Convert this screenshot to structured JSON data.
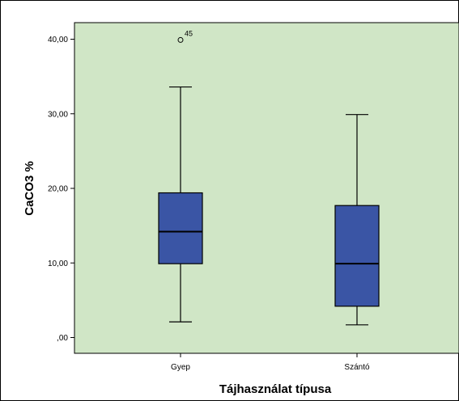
{
  "chart_data": {
    "type": "boxplot",
    "title": "",
    "xlabel": "Tájhasználat típusa",
    "ylabel": "CaCO3 %",
    "ylim": [
      -2,
      43
    ],
    "yticks": [
      0,
      10,
      20,
      30,
      40
    ],
    "ytick_labels": [
      ",00",
      "10,00",
      "20,00",
      "30,00",
      "40,00"
    ],
    "grid": false,
    "colors": {
      "plot_background": "#d0e6c6",
      "box_fill": "#3a55a5",
      "stroke": "#000000"
    },
    "categories": [
      "Gyep",
      "Szántó"
    ],
    "boxes": [
      {
        "category": "Gyep",
        "whisker_low": 2.1,
        "q1": 9.9,
        "median": 14.2,
        "q3": 19.4,
        "whisker_high": 33.6,
        "outliers": [
          {
            "value": 39.9,
            "label": "45"
          }
        ]
      },
      {
        "category": "Szántó",
        "whisker_low": 1.7,
        "q1": 4.2,
        "median": 9.9,
        "q3": 17.7,
        "whisker_high": 29.9,
        "outliers": []
      }
    ]
  }
}
